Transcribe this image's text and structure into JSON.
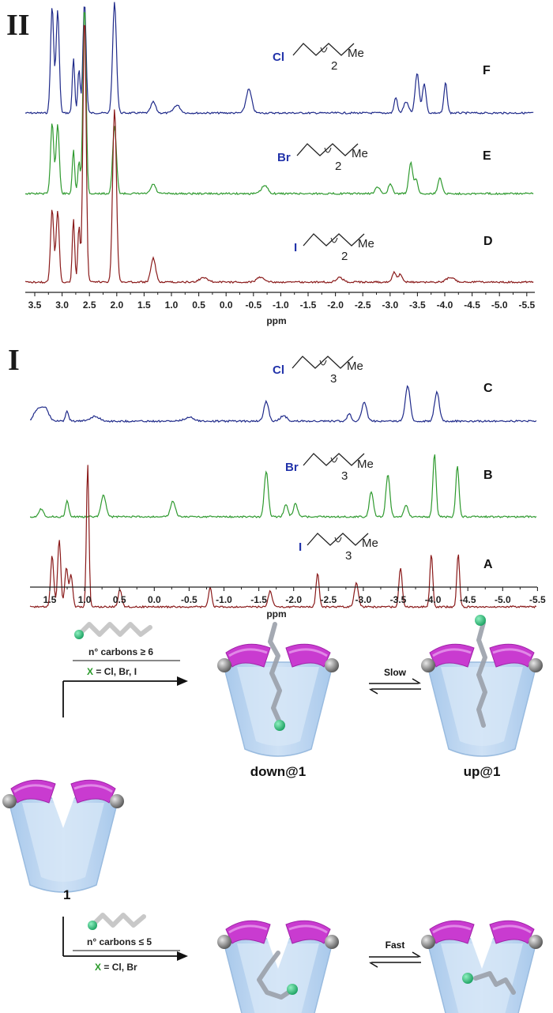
{
  "panel_II": {
    "numeral": "II",
    "axis_label": "ppm",
    "ticks": [
      "3.5",
      "3.0",
      "2.5",
      "2.0",
      "1.5",
      "1.0",
      "0.5",
      "0.0",
      "-0.5",
      "-1.0",
      "-1.5",
      "-2.0",
      "-2.5",
      "-3.0",
      "-3.5",
      "-4.0",
      "-4.5",
      "-5.0",
      "-5.5"
    ],
    "spectra": [
      {
        "letter": "F",
        "halogen": "Cl",
        "subscript": "2",
        "tail": "Me",
        "color": "#1f2a8a"
      },
      {
        "letter": "E",
        "halogen": "Br",
        "subscript": "2",
        "tail": "Me",
        "color": "#2f9a2f"
      },
      {
        "letter": "D",
        "halogen": "I",
        "subscript": "2",
        "tail": "Me",
        "color": "#8a1a1a"
      }
    ]
  },
  "panel_I": {
    "numeral": "I",
    "axis_label": "ppm",
    "ticks": [
      "1.5",
      "1.0",
      "0.5",
      "0.0",
      "-0.5",
      "-1.0",
      "-1.5",
      "-2.0",
      "-2.5",
      "-3.0",
      "-3.5",
      "-4.0",
      "-4.5",
      "-5.0",
      "-5.5"
    ],
    "spectra": [
      {
        "letter": "C",
        "halogen": "Cl",
        "subscript": "3",
        "tail": "Me",
        "color": "#1f2a8a"
      },
      {
        "letter": "B",
        "halogen": "Br",
        "subscript": "3",
        "tail": "Me",
        "color": "#2f9a2f"
      },
      {
        "letter": "A",
        "halogen": "I",
        "subscript": "3",
        "tail": "Me",
        "color": "#8a1a1a"
      }
    ]
  },
  "scheme": {
    "host_label": "1",
    "upper": {
      "condition_carbons": "n° carbons ≥ 6",
      "condition_x_prefix": "X",
      "condition_x_rest": " = Cl, Br, I",
      "product_left": "down@1",
      "product_right": "up@1",
      "equilibrium": "Slow"
    },
    "lower": {
      "condition_carbons": "n° carbons ≤ 5",
      "condition_x_prefix": "X",
      "condition_x_rest": " = Cl, Br",
      "equilibrium": "Fast"
    }
  }
}
